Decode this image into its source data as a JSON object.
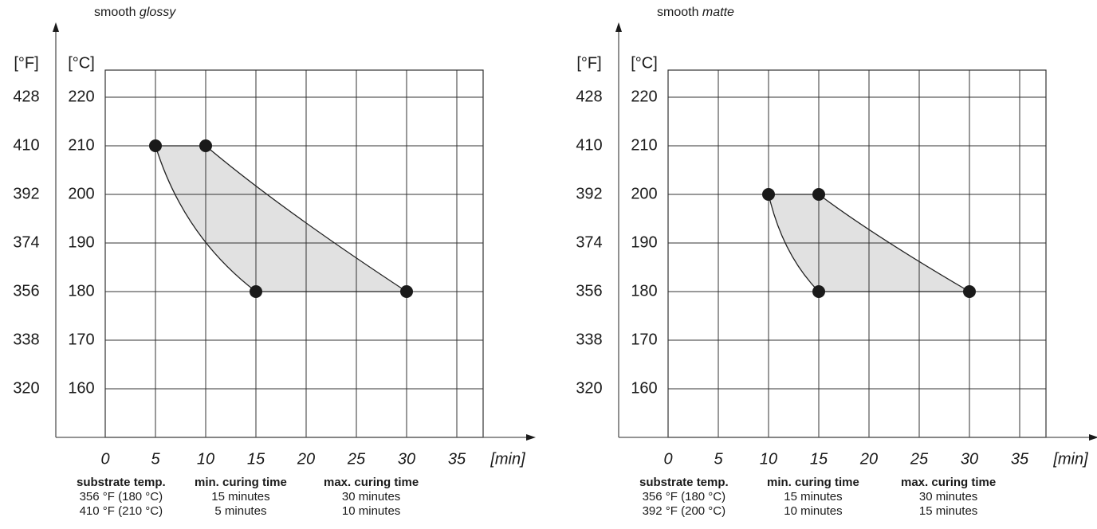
{
  "chart_data": [
    {
      "type": "area",
      "title_prefix": "smooth",
      "title_emph": "glossy",
      "xlabel": "[min]",
      "ylabel_f": "[°F]",
      "ylabel_c": "[°C]",
      "x_ticks": [
        "0",
        "5",
        "10",
        "15",
        "20",
        "25",
        "30",
        "35"
      ],
      "y_ticks_f": [
        "428",
        "410",
        "392",
        "374",
        "356",
        "338",
        "320"
      ],
      "y_ticks_c": [
        "220",
        "210",
        "200",
        "190",
        "180",
        "170",
        "160"
      ],
      "xlim": [
        0,
        38
      ],
      "ylim": [
        150,
        228
      ],
      "grid": true,
      "points": [
        {
          "x": 5,
          "y": 210
        },
        {
          "x": 10,
          "y": 210
        },
        {
          "x": 15,
          "y": 180
        },
        {
          "x": 30,
          "y": 180
        }
      ],
      "region": {
        "min_curve": {
          "top": {
            "x": 5,
            "y": 210
          },
          "bottom": {
            "x": 15,
            "y": 180
          }
        },
        "max_curve": {
          "top": {
            "x": 10,
            "y": 210
          },
          "bottom": {
            "x": 30,
            "y": 180
          }
        }
      },
      "table": {
        "headers": [
          "substrate temp.",
          "min. curing time",
          "max. curing time"
        ],
        "rows": [
          [
            "356 °F (180 °C)",
            "15 minutes",
            "30 minutes"
          ],
          [
            "410 °F (210 °C)",
            "5 minutes",
            "10 minutes"
          ]
        ]
      }
    },
    {
      "type": "area",
      "title_prefix": "smooth",
      "title_emph": "matte",
      "xlabel": "[min]",
      "ylabel_f": "[°F]",
      "ylabel_c": "[°C]",
      "x_ticks": [
        "0",
        "5",
        "10",
        "15",
        "20",
        "25",
        "30",
        "35"
      ],
      "y_ticks_f": [
        "428",
        "410",
        "392",
        "374",
        "356",
        "338",
        "320"
      ],
      "y_ticks_c": [
        "220",
        "210",
        "200",
        "190",
        "180",
        "170",
        "160"
      ],
      "xlim": [
        0,
        38
      ],
      "ylim": [
        150,
        228
      ],
      "grid": true,
      "points": [
        {
          "x": 10,
          "y": 200
        },
        {
          "x": 15,
          "y": 200
        },
        {
          "x": 15,
          "y": 180
        },
        {
          "x": 30,
          "y": 180
        }
      ],
      "region": {
        "min_curve": {
          "top": {
            "x": 10,
            "y": 200
          },
          "bottom": {
            "x": 15,
            "y": 180
          }
        },
        "max_curve": {
          "top": {
            "x": 15,
            "y": 200
          },
          "bottom": {
            "x": 30,
            "y": 180
          }
        }
      },
      "table": {
        "headers": [
          "substrate temp.",
          "min. curing time",
          "max. curing time"
        ],
        "rows": [
          [
            "356 °F (180 °C)",
            "15 minutes",
            "30 minutes"
          ],
          [
            "392 °F (200 °C)",
            "10 minutes",
            "15 minutes"
          ]
        ]
      }
    }
  ],
  "colors": {
    "fill": "#e1e1e1",
    "line": "#222222",
    "grid": "#333333",
    "point": "#1a1a1a",
    "axis": "#555555"
  }
}
